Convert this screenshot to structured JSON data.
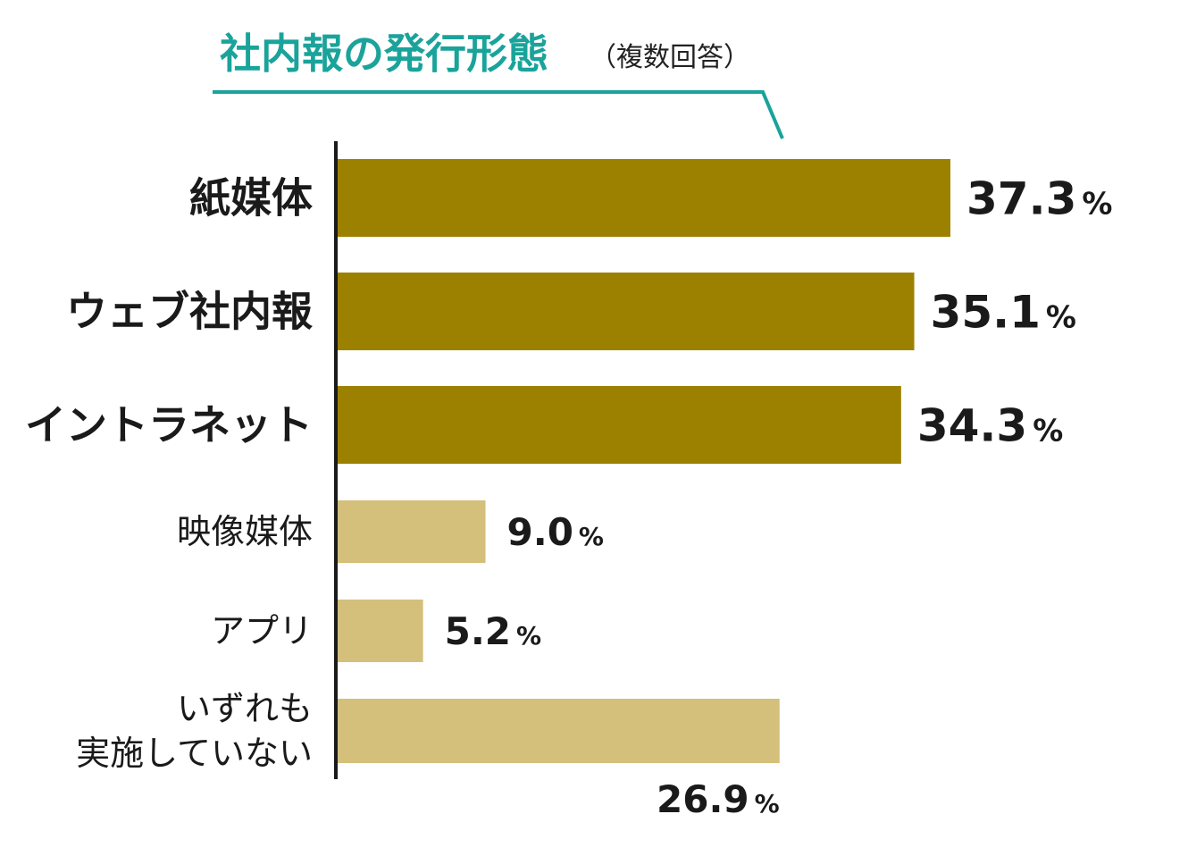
{
  "chart_data": {
    "type": "bar",
    "orientation": "horizontal",
    "title": "社内報の発行形態",
    "subtitle": "（複数回答）",
    "categories": [
      [
        "紙媒体"
      ],
      [
        "ウェブ社内報"
      ],
      [
        "イントラネット"
      ],
      [
        "映像媒体"
      ],
      [
        "アプリ"
      ],
      [
        "いずれも",
        "実施していない"
      ]
    ],
    "values": [
      37.3,
      35.1,
      34.3,
      9.0,
      5.2,
      26.9
    ],
    "value_labels": [
      "37.3",
      "35.1",
      "34.3",
      "9.0",
      "5.2",
      "26.9"
    ],
    "unit": "%",
    "highlighted": [
      true,
      true,
      true,
      false,
      false,
      false
    ],
    "xlim": [
      0,
      40
    ],
    "grid": false,
    "colors": {
      "highlight": "#9c8100",
      "normal": "#d4bf7b",
      "title": "#1aa39a",
      "axis": "#1a1a1a"
    }
  }
}
